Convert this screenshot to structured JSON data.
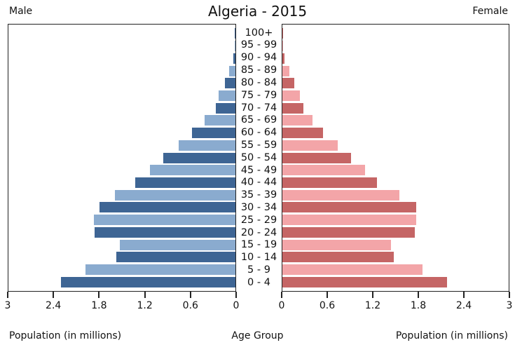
{
  "header": {
    "male_label": "Male",
    "title": "Algeria - 2015",
    "female_label": "Female"
  },
  "footer": {
    "left_axis_label": "Population (in millions)",
    "center_label": "Age Group",
    "right_axis_label": "Population (in millions)"
  },
  "chart_data": {
    "type": "bar",
    "subtype": "population-pyramid",
    "title": "Algeria - 2015",
    "units": "millions",
    "order": "top-to-bottom",
    "categories": [
      "100+",
      "95 - 99",
      "90 - 94",
      "85 - 89",
      "80 - 84",
      "75 - 79",
      "70 - 74",
      "65 - 69",
      "60 - 64",
      "55 - 59",
      "50 - 54",
      "45 - 49",
      "40 - 44",
      "35 - 39",
      "30 - 34",
      "25 - 29",
      "20 - 24",
      "15 - 19",
      "10 - 14",
      "5 - 9",
      "0 - 4"
    ],
    "series": [
      {
        "name": "Male",
        "side": "left",
        "values": [
          0.01,
          0.01,
          0.03,
          0.08,
          0.14,
          0.22,
          0.26,
          0.41,
          0.57,
          0.75,
          0.95,
          1.13,
          1.32,
          1.59,
          1.8,
          1.87,
          1.86,
          1.53,
          1.57,
          1.98,
          2.31
        ]
      },
      {
        "name": "Female",
        "side": "right",
        "values": [
          0.01,
          0.01,
          0.03,
          0.09,
          0.16,
          0.23,
          0.28,
          0.4,
          0.54,
          0.73,
          0.91,
          1.1,
          1.25,
          1.55,
          1.77,
          1.77,
          1.76,
          1.44,
          1.48,
          1.86,
          2.18
        ]
      }
    ],
    "xlim": [
      0,
      3
    ],
    "x_ticks_left": [
      3,
      2.4,
      1.8,
      1.2,
      0.6,
      0
    ],
    "x_ticks_right": [
      0,
      0.6,
      1.2,
      1.8,
      2.4,
      3
    ],
    "grid": false,
    "legend_position": "none",
    "colors": {
      "male_dark": "#3E6594",
      "male_light": "#8AABCF",
      "female_dark": "#C56565",
      "female_light": "#F3A5A8",
      "axis": "#222222",
      "text": "#111111"
    }
  }
}
